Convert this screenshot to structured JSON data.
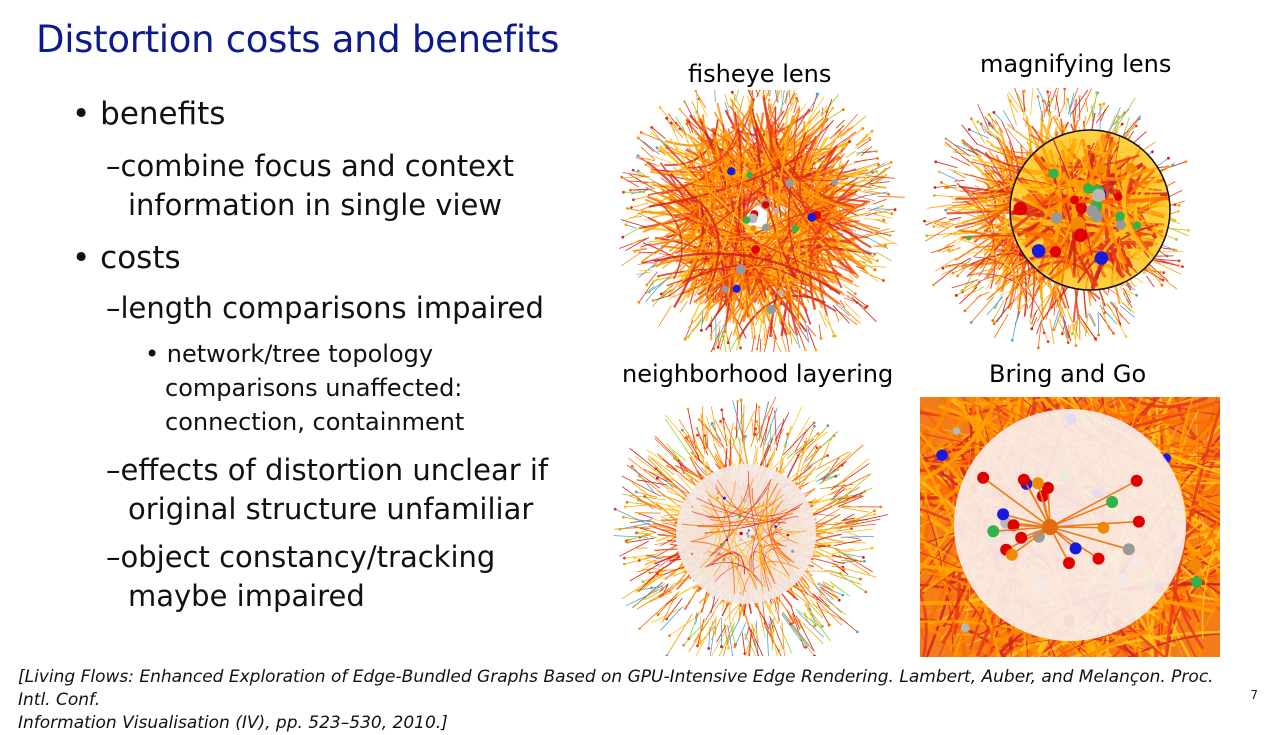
{
  "slide": {
    "title": "Distortion costs and benefits",
    "bullets": [
      {
        "marker": "•",
        "text": "benefits"
      },
      {
        "marker": "–",
        "text": "combine focus and context",
        "cont": "information in single view"
      },
      {
        "marker": "•",
        "text": "costs"
      },
      {
        "marker": "–",
        "text": "length comparisons impaired"
      },
      {
        "marker": "•",
        "text": "network/tree topology",
        "cont": [
          "comparisons unaffected:",
          "connection, containment"
        ]
      },
      {
        "marker": "–",
        "text": "effects of distortion unclear if",
        "cont": "original structure unfamiliar"
      },
      {
        "marker": "–",
        "text": "object constancy/tracking",
        "cont": "maybe impaired"
      }
    ],
    "figures": [
      {
        "caption": "fisheye lens"
      },
      {
        "caption": "magnifying lens"
      },
      {
        "caption": "neighborhood layering"
      },
      {
        "caption": "Bring and Go"
      }
    ],
    "citation": {
      "line1": "[Living Flows: Enhanced Exploration of Edge-Bundled Graphs Based on GPU-Intensive Edge Rendering. Lambert, Auber, and Melançon. Proc. Intl. Conf.",
      "line2": "Information Visualisation (IV), pp. 523–530, 2010.]"
    },
    "page_number": "7"
  },
  "colors": {
    "title": "#0c1a8c",
    "edges": [
      "#ff6a00",
      "#ff8c00",
      "#ffa500",
      "#e83a1c",
      "#ffc21a",
      "#d21e1e",
      "#9acd32",
      "#4aa3df"
    ],
    "nodes": [
      "#e00000",
      "#1a1adc",
      "#2fb34a",
      "#999999",
      "#f08a00",
      "#b8b8b8"
    ]
  }
}
